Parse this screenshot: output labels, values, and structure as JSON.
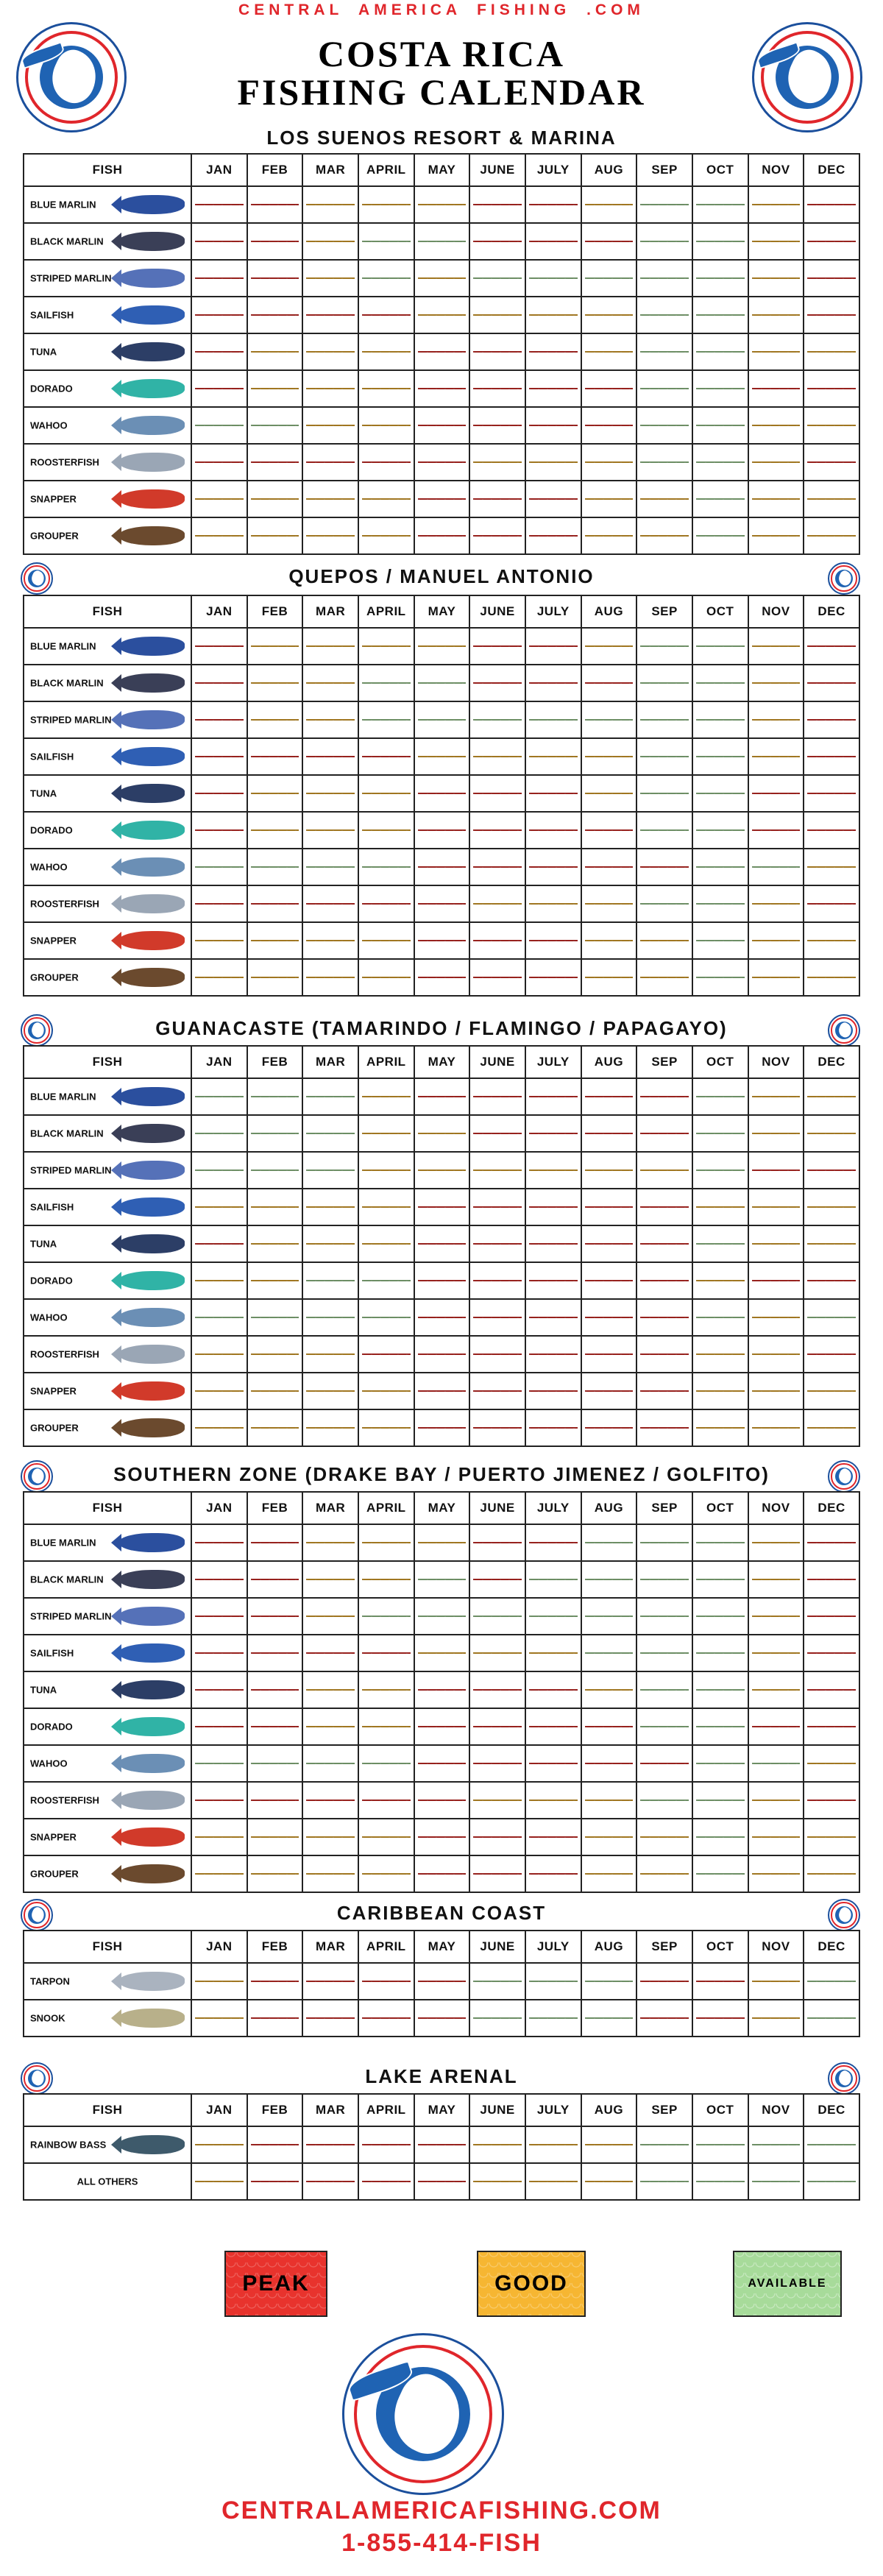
{
  "header": {
    "site": "CENTRAL AMERICA FISHING .COM",
    "title_line1": "COSTA RICA",
    "title_line2": "FISHING CALENDAR",
    "logo_text": "CENTRAL AMERICA FISHING"
  },
  "months": [
    "JAN",
    "FEB",
    "MAR",
    "APRIL",
    "MAY",
    "JUNE",
    "JULY",
    "AUG",
    "SEP",
    "OCT",
    "NOV",
    "DEC"
  ],
  "fish_header": "FISH",
  "colors": {
    "peak": "#e8332d",
    "good": "#f6b632",
    "available": "#a7db9a",
    "brand_red": "#e0262b",
    "brand_blue": "#1f63b3"
  },
  "sections": [
    {
      "title": "LOS SUENOS RESORT & MARINA",
      "rows": [
        {
          "fish": "BLUE MARLIN",
          "icon": "blue-marlin-icon",
          "ratings": [
            "P",
            "P",
            "G",
            "G",
            "G",
            "P",
            "P",
            "G",
            "A",
            "A",
            "G",
            "P"
          ]
        },
        {
          "fish": "BLACK MARLIN",
          "icon": "black-marlin-icon",
          "ratings": [
            "P",
            "P",
            "G",
            "A",
            "A",
            "P",
            "P",
            "P",
            "A",
            "A",
            "G",
            "P"
          ]
        },
        {
          "fish": "STRIPED MARLIN",
          "icon": "striped-marlin-icon",
          "ratings": [
            "P",
            "P",
            "G",
            "A",
            "G",
            "A",
            "A",
            "A",
            "A",
            "A",
            "G",
            "P"
          ]
        },
        {
          "fish": "SAILFISH",
          "icon": "sailfish-icon",
          "ratings": [
            "P",
            "P",
            "P",
            "P",
            "G",
            "G",
            "G",
            "G",
            "A",
            "A",
            "G",
            "P"
          ]
        },
        {
          "fish": "TUNA",
          "icon": "tuna-icon",
          "ratings": [
            "P",
            "G",
            "G",
            "G",
            "P",
            "P",
            "P",
            "G",
            "A",
            "A",
            "G",
            "G"
          ]
        },
        {
          "fish": "DORADO",
          "icon": "dorado-icon",
          "ratings": [
            "P",
            "G",
            "G",
            "G",
            "P",
            "P",
            "P",
            "P",
            "A",
            "A",
            "P",
            "P"
          ]
        },
        {
          "fish": "WAHOO",
          "icon": "wahoo-icon",
          "ratings": [
            "A",
            "A",
            "G",
            "G",
            "P",
            "P",
            "P",
            "P",
            "A",
            "A",
            "G",
            "G"
          ]
        },
        {
          "fish": "ROOSTERFISH",
          "icon": "roosterfish-icon",
          "ratings": [
            "P",
            "P",
            "P",
            "P",
            "P",
            "G",
            "G",
            "G",
            "A",
            "A",
            "G",
            "P"
          ]
        },
        {
          "fish": "SNAPPER",
          "icon": "snapper-icon",
          "ratings": [
            "G",
            "G",
            "G",
            "G",
            "P",
            "P",
            "P",
            "G",
            "G",
            "A",
            "G",
            "G"
          ]
        },
        {
          "fish": "GROUPER",
          "icon": "grouper-icon",
          "ratings": [
            "G",
            "G",
            "G",
            "G",
            "P",
            "P",
            "P",
            "G",
            "G",
            "A",
            "G",
            "G"
          ]
        }
      ]
    },
    {
      "title": "QUEPOS / MANUEL ANTONIO",
      "rows": [
        {
          "fish": "BLUE MARLIN",
          "icon": "blue-marlin-icon",
          "ratings": [
            "P",
            "G",
            "G",
            "G",
            "G",
            "P",
            "P",
            "G",
            "A",
            "A",
            "G",
            "P"
          ]
        },
        {
          "fish": "BLACK MARLIN",
          "icon": "black-marlin-icon",
          "ratings": [
            "P",
            "G",
            "G",
            "A",
            "A",
            "P",
            "P",
            "P",
            "A",
            "A",
            "G",
            "P"
          ]
        },
        {
          "fish": "STRIPED MARLIN",
          "icon": "striped-marlin-icon",
          "ratings": [
            "P",
            "G",
            "G",
            "A",
            "A",
            "A",
            "A",
            "A",
            "A",
            "A",
            "G",
            "P"
          ]
        },
        {
          "fish": "SAILFISH",
          "icon": "sailfish-icon",
          "ratings": [
            "P",
            "P",
            "P",
            "P",
            "G",
            "G",
            "G",
            "G",
            "A",
            "A",
            "G",
            "P"
          ]
        },
        {
          "fish": "TUNA",
          "icon": "tuna-icon",
          "ratings": [
            "P",
            "G",
            "G",
            "G",
            "P",
            "P",
            "P",
            "G",
            "A",
            "A",
            "P",
            "P"
          ]
        },
        {
          "fish": "DORADO",
          "icon": "dorado-icon",
          "ratings": [
            "P",
            "G",
            "G",
            "G",
            "P",
            "P",
            "P",
            "P",
            "A",
            "A",
            "P",
            "P"
          ]
        },
        {
          "fish": "WAHOO",
          "icon": "wahoo-icon",
          "ratings": [
            "A",
            "A",
            "A",
            "A",
            "P",
            "P",
            "P",
            "P",
            "P",
            "A",
            "A",
            "G"
          ]
        },
        {
          "fish": "ROOSTERFISH",
          "icon": "roosterfish-icon",
          "ratings": [
            "P",
            "P",
            "P",
            "P",
            "P",
            "G",
            "G",
            "G",
            "A",
            "A",
            "G",
            "P"
          ]
        },
        {
          "fish": "SNAPPER",
          "icon": "snapper-icon",
          "ratings": [
            "G",
            "G",
            "G",
            "G",
            "P",
            "P",
            "P",
            "G",
            "G",
            "A",
            "G",
            "G"
          ]
        },
        {
          "fish": "GROUPER",
          "icon": "grouper-icon",
          "ratings": [
            "G",
            "G",
            "G",
            "G",
            "P",
            "P",
            "P",
            "G",
            "G",
            "A",
            "G",
            "G"
          ]
        }
      ]
    },
    {
      "title": "GUANACASTE (TAMARINDO / FLAMINGO / PAPAGAYO)",
      "rows": [
        {
          "fish": "BLUE MARLIN",
          "icon": "blue-marlin-icon",
          "ratings": [
            "A",
            "A",
            "A",
            "G",
            "P",
            "P",
            "P",
            "P",
            "P",
            "A",
            "G",
            "G"
          ]
        },
        {
          "fish": "BLACK MARLIN",
          "icon": "black-marlin-icon",
          "ratings": [
            "A",
            "A",
            "A",
            "G",
            "G",
            "P",
            "P",
            "P",
            "P",
            "A",
            "G",
            "G"
          ]
        },
        {
          "fish": "STRIPED MARLIN",
          "icon": "striped-marlin-icon",
          "ratings": [
            "A",
            "A",
            "A",
            "G",
            "G",
            "G",
            "G",
            "G",
            "G",
            "A",
            "P",
            "P"
          ]
        },
        {
          "fish": "SAILFISH",
          "icon": "sailfish-icon",
          "ratings": [
            "G",
            "G",
            "G",
            "G",
            "P",
            "P",
            "P",
            "P",
            "P",
            "G",
            "G",
            "G"
          ]
        },
        {
          "fish": "TUNA",
          "icon": "tuna-icon",
          "ratings": [
            "P",
            "G",
            "G",
            "G",
            "P",
            "P",
            "P",
            "P",
            "P",
            "A",
            "G",
            "G"
          ]
        },
        {
          "fish": "DORADO",
          "icon": "dorado-icon",
          "ratings": [
            "G",
            "G",
            "A",
            "A",
            "P",
            "P",
            "P",
            "P",
            "P",
            "G",
            "P",
            "P"
          ]
        },
        {
          "fish": "WAHOO",
          "icon": "wahoo-icon",
          "ratings": [
            "A",
            "A",
            "A",
            "A",
            "P",
            "P",
            "P",
            "P",
            "P",
            "A",
            "G",
            "A"
          ]
        },
        {
          "fish": "ROOSTERFISH",
          "icon": "roosterfish-icon",
          "ratings": [
            "G",
            "G",
            "G",
            "P",
            "P",
            "P",
            "P",
            "P",
            "P",
            "G",
            "G",
            "P"
          ]
        },
        {
          "fish": "SNAPPER",
          "icon": "snapper-icon",
          "ratings": [
            "G",
            "G",
            "G",
            "G",
            "P",
            "P",
            "P",
            "P",
            "P",
            "G",
            "G",
            "G"
          ]
        },
        {
          "fish": "GROUPER",
          "icon": "grouper-icon",
          "ratings": [
            "G",
            "G",
            "G",
            "G",
            "P",
            "P",
            "P",
            "P",
            "P",
            "G",
            "G",
            "G"
          ]
        }
      ]
    },
    {
      "title": "SOUTHERN ZONE (DRAKE BAY / PUERTO JIMENEZ / GOLFITO)",
      "rows": [
        {
          "fish": "BLUE MARLIN",
          "icon": "blue-marlin-icon",
          "ratings": [
            "P",
            "P",
            "G",
            "G",
            "G",
            "P",
            "P",
            "A",
            "A",
            "A",
            "G",
            "P"
          ]
        },
        {
          "fish": "BLACK MARLIN",
          "icon": "black-marlin-icon",
          "ratings": [
            "P",
            "P",
            "G",
            "G",
            "A",
            "P",
            "A",
            "A",
            "A",
            "A",
            "G",
            "P"
          ]
        },
        {
          "fish": "STRIPED MARLIN",
          "icon": "striped-marlin-icon",
          "ratings": [
            "P",
            "P",
            "G",
            "A",
            "A",
            "A",
            "A",
            "A",
            "A",
            "A",
            "G",
            "P"
          ]
        },
        {
          "fish": "SAILFISH",
          "icon": "sailfish-icon",
          "ratings": [
            "P",
            "P",
            "P",
            "P",
            "G",
            "G",
            "G",
            "A",
            "A",
            "A",
            "G",
            "P"
          ]
        },
        {
          "fish": "TUNA",
          "icon": "tuna-icon",
          "ratings": [
            "P",
            "P",
            "G",
            "G",
            "P",
            "P",
            "P",
            "G",
            "A",
            "A",
            "G",
            "P"
          ]
        },
        {
          "fish": "DORADO",
          "icon": "dorado-icon",
          "ratings": [
            "P",
            "P",
            "G",
            "G",
            "P",
            "P",
            "P",
            "P",
            "A",
            "A",
            "P",
            "P"
          ]
        },
        {
          "fish": "WAHOO",
          "icon": "wahoo-icon",
          "ratings": [
            "A",
            "A",
            "A",
            "A",
            "P",
            "P",
            "P",
            "P",
            "P",
            "A",
            "A",
            "G"
          ]
        },
        {
          "fish": "ROOSTERFISH",
          "icon": "roosterfish-icon",
          "ratings": [
            "P",
            "P",
            "P",
            "P",
            "P",
            "G",
            "G",
            "G",
            "A",
            "A",
            "G",
            "P"
          ]
        },
        {
          "fish": "SNAPPER",
          "icon": "snapper-icon",
          "ratings": [
            "G",
            "G",
            "G",
            "G",
            "P",
            "P",
            "P",
            "G",
            "G",
            "A",
            "G",
            "G"
          ]
        },
        {
          "fish": "GROUPER",
          "icon": "grouper-icon",
          "ratings": [
            "G",
            "G",
            "G",
            "G",
            "P",
            "P",
            "P",
            "G",
            "G",
            "A",
            "G",
            "G"
          ]
        }
      ]
    },
    {
      "title": "CARIBBEAN COAST",
      "rows": [
        {
          "fish": "TARPON",
          "icon": "tarpon-icon",
          "ratings": [
            "G",
            "P",
            "P",
            "P",
            "P",
            "A",
            "A",
            "A",
            "P",
            "P",
            "G",
            "A"
          ]
        },
        {
          "fish": "SNOOK",
          "icon": "snook-icon",
          "ratings": [
            "G",
            "P",
            "P",
            "P",
            "P",
            "A",
            "A",
            "A",
            "P",
            "P",
            "G",
            "A"
          ]
        }
      ]
    },
    {
      "title": "LAKE ARENAL",
      "rows": [
        {
          "fish": "RAINBOW BASS",
          "icon": "rainbow-bass-icon",
          "ratings": [
            "G",
            "P",
            "P",
            "P",
            "P",
            "G",
            "G",
            "G",
            "A",
            "A",
            "A",
            "A"
          ]
        },
        {
          "fish": "ALL OTHERS",
          "icon": "",
          "ratings": [
            "G",
            "P",
            "P",
            "P",
            "P",
            "G",
            "G",
            "G",
            "A",
            "A",
            "A",
            "A"
          ]
        }
      ]
    }
  ],
  "legend": {
    "peak": "PEAK",
    "good": "GOOD",
    "available": "AVAILABLE"
  },
  "footer": {
    "url": "CENTRALAMERICAFISHING.COM",
    "phone": "1-855-414-FISH"
  }
}
